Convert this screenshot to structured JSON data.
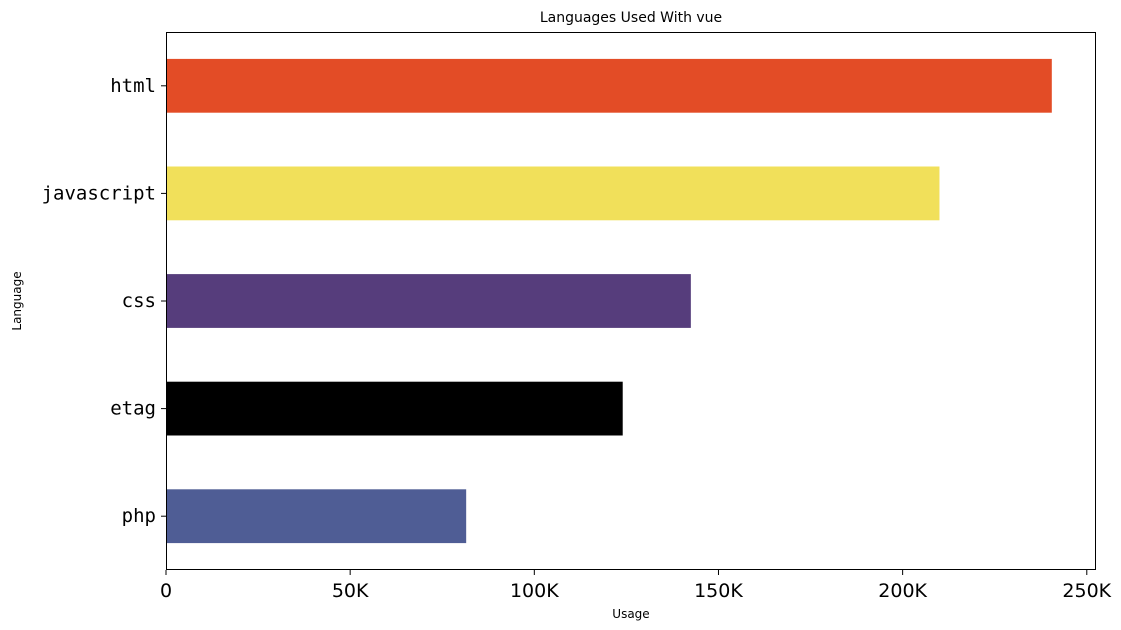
{
  "chart_data": {
    "type": "bar",
    "orientation": "horizontal",
    "title": "Languages Used With vue",
    "xlabel": "Usage",
    "ylabel": "Language",
    "categories": [
      "html",
      "javascript",
      "css",
      "etag",
      "php"
    ],
    "values": [
      240500,
      210000,
      142500,
      124000,
      81500
    ],
    "colors": [
      "#e34c26",
      "#f1e05a",
      "#563d7c",
      "#000000",
      "#4f5d95"
    ],
    "xlim": [
      0,
      252500
    ],
    "xticks": [
      0,
      50000,
      100000,
      150000,
      200000,
      250000
    ],
    "xtick_labels": [
      "0",
      "50K",
      "100K",
      "150K",
      "200K",
      "250K"
    ],
    "grid": false,
    "legend": "none"
  }
}
